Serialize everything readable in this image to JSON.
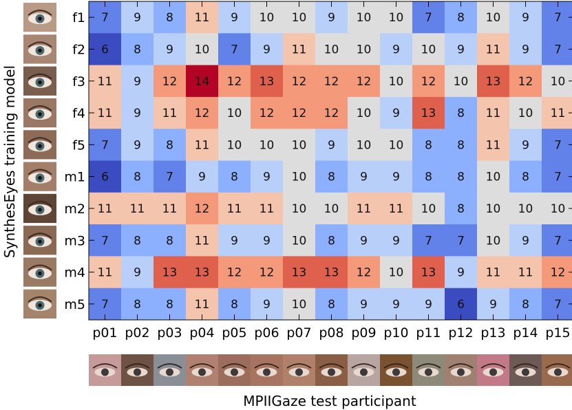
{
  "chart_data": {
    "type": "heatmap",
    "xlabel": "MPIIGaze test participant",
    "ylabel": "SynthesEyes training model",
    "x_categories": [
      "p01",
      "p02",
      "p03",
      "p04",
      "p05",
      "p06",
      "p07",
      "p08",
      "p09",
      "p10",
      "p11",
      "p12",
      "p13",
      "p14",
      "p15"
    ],
    "y_categories": [
      "f1",
      "f2",
      "f3",
      "f4",
      "f5",
      "m1",
      "m2",
      "m3",
      "m4",
      "m5"
    ],
    "values": [
      [
        7,
        9,
        8,
        11,
        9,
        10,
        10,
        9,
        10,
        10,
        7,
        8,
        10,
        9,
        7
      ],
      [
        6,
        8,
        9,
        10,
        7,
        9,
        11,
        10,
        10,
        9,
        10,
        9,
        11,
        9,
        7
      ],
      [
        11,
        9,
        12,
        14,
        12,
        13,
        12,
        12,
        12,
        10,
        12,
        10,
        13,
        12,
        10
      ],
      [
        11,
        9,
        11,
        12,
        10,
        12,
        12,
        12,
        10,
        9,
        13,
        8,
        11,
        10,
        11
      ],
      [
        7,
        9,
        8,
        11,
        10,
        10,
        10,
        9,
        10,
        10,
        8,
        8,
        11,
        9,
        7
      ],
      [
        6,
        8,
        7,
        9,
        8,
        9,
        10,
        8,
        9,
        9,
        8,
        8,
        10,
        8,
        7
      ],
      [
        11,
        11,
        11,
        12,
        11,
        11,
        10,
        10,
        11,
        11,
        10,
        8,
        10,
        10,
        10
      ],
      [
        7,
        8,
        8,
        11,
        9,
        9,
        10,
        8,
        9,
        9,
        7,
        7,
        10,
        9,
        7
      ],
      [
        11,
        9,
        13,
        13,
        12,
        12,
        13,
        13,
        12,
        10,
        13,
        9,
        11,
        11,
        12
      ],
      [
        7,
        8,
        8,
        11,
        8,
        9,
        10,
        8,
        9,
        9,
        9,
        6,
        9,
        8,
        7
      ]
    ],
    "colormap": "coolwarm",
    "vmin": 6,
    "vmax": 14,
    "row_thumbnail_colors": [
      "#b89a86",
      "#a88673",
      "#7a5e4e",
      "#9a7864",
      "#8d6b57",
      "#a37f69",
      "#5e4536",
      "#8a6a55",
      "#9b7a63",
      "#a5846c"
    ],
    "column_thumbnail_colors": [
      "#c79a9a",
      "#6e5244",
      "#8a8e96",
      "#b08070",
      "#9c6c5c",
      "#a87462",
      "#b0806a",
      "#8a5e44",
      "#b8a4a0",
      "#7a5230",
      "#8e8a7a",
      "#a08070",
      "#c27a88",
      "#6e5a54",
      "#9a6a4e"
    ]
  }
}
